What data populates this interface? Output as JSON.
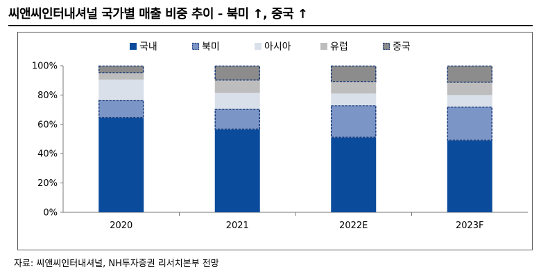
{
  "header": {
    "title": "씨앤씨인터내셔널 국가별 매출 비중 추이 - 북미 ↑, 중국 ↑"
  },
  "footer": {
    "source": "자료: 씨앤씨인터내셔널, NH투자증권 리서치본부 전망"
  },
  "colors": {
    "domestic": "#0a4b9c",
    "north_america": "#7b95c6",
    "asia": "#d9e0ea",
    "europe": "#bdbdbd",
    "china": "#8c8c8c",
    "highlight_outline": "#1f3e7a"
  },
  "chart_data": {
    "type": "bar",
    "stacked": true,
    "title": "씨앤씨인터내셔널 국가별 매출 비중 추이 - 북미 ↑, 중국 ↑",
    "categories": [
      "2020",
      "2021",
      "2022E",
      "2023F"
    ],
    "y_ticks": [
      "0%",
      "20%",
      "40%",
      "60%",
      "80%",
      "100%"
    ],
    "ylim": [
      0,
      100
    ],
    "legend_position": "top",
    "highlighted_series": [
      "북미",
      "중국"
    ],
    "series": [
      {
        "name": "국내",
        "color_key": "domestic",
        "values": [
          64.5,
          56.5,
          51,
          49
        ]
      },
      {
        "name": "북미",
        "color_key": "north_america",
        "values": [
          12,
          14,
          22,
          23
        ]
      },
      {
        "name": "아시아",
        "color_key": "asia",
        "values": [
          14,
          11,
          8,
          8
        ]
      },
      {
        "name": "유럽",
        "color_key": "europe",
        "values": [
          4.5,
          8.5,
          8,
          8.5
        ]
      },
      {
        "name": "중국",
        "color_key": "china",
        "values": [
          5,
          10,
          11,
          11.5
        ]
      }
    ]
  }
}
